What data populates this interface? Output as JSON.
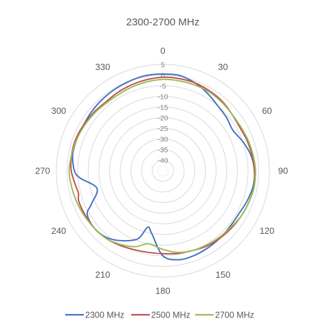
{
  "chart_data": {
    "type": "radar",
    "title": "2300-2700 MHz",
    "angle_labels": [
      "0",
      "30",
      "60",
      "90",
      "120",
      "150",
      "180",
      "210",
      "240",
      "270",
      "300",
      "330"
    ],
    "radial_ticks": [
      5,
      0,
      -5,
      -10,
      -15,
      -20,
      -25,
      -30,
      -35,
      -40
    ],
    "radial_tick_labels": [
      "5",
      "0",
      "-5",
      "-10",
      "-15",
      "-20",
      "-25",
      "-30",
      "-35",
      "-40"
    ],
    "rlim": [
      -45,
      5
    ],
    "grid": true,
    "legend_position": "bottom",
    "series": [
      {
        "name": "2300 MHz",
        "color": "#4472c4",
        "points": [
          [
            0,
            0.5
          ],
          [
            10,
            0.5
          ],
          [
            20,
            -1
          ],
          [
            30,
            -3
          ],
          [
            40,
            -5
          ],
          [
            50,
            -6
          ],
          [
            60,
            -7
          ],
          [
            70,
            -5
          ],
          [
            80,
            -3
          ],
          [
            90,
            -2
          ],
          [
            100,
            -2
          ],
          [
            110,
            -3
          ],
          [
            120,
            -4
          ],
          [
            130,
            -4
          ],
          [
            140,
            -3.5
          ],
          [
            150,
            -3
          ],
          [
            160,
            -2.5
          ],
          [
            170,
            -2.5
          ],
          [
            180,
            -5
          ],
          [
            190,
            -15
          ],
          [
            195,
            -17.5
          ],
          [
            200,
            -11
          ],
          [
            210,
            -7
          ],
          [
            220,
            -4
          ],
          [
            230,
            -3
          ],
          [
            240,
            -4
          ],
          [
            245,
            -8
          ],
          [
            255,
            -13
          ],
          [
            265,
            -6
          ],
          [
            270,
            -3.5
          ],
          [
            280,
            -2
          ],
          [
            290,
            -2
          ],
          [
            300,
            -2
          ],
          [
            310,
            -1.5
          ],
          [
            320,
            -1
          ],
          [
            330,
            -0.5
          ],
          [
            340,
            0
          ],
          [
            350,
            0.5
          ]
        ]
      },
      {
        "name": "2500 MHz",
        "color": "#c0504d",
        "points": [
          [
            0,
            -1
          ],
          [
            10,
            -1
          ],
          [
            20,
            -1
          ],
          [
            30,
            -1.5
          ],
          [
            40,
            -2
          ],
          [
            50,
            -3
          ],
          [
            60,
            -3.5
          ],
          [
            70,
            -3
          ],
          [
            80,
            -2.5
          ],
          [
            90,
            -2
          ],
          [
            100,
            -1.5
          ],
          [
            110,
            -2
          ],
          [
            120,
            -2.5
          ],
          [
            130,
            -3
          ],
          [
            140,
            -3.5
          ],
          [
            150,
            -4
          ],
          [
            160,
            -5
          ],
          [
            170,
            -5.5
          ],
          [
            180,
            -6
          ],
          [
            190,
            -6
          ],
          [
            200,
            -5.5
          ],
          [
            210,
            -4.5
          ],
          [
            220,
            -3.5
          ],
          [
            230,
            -3
          ],
          [
            240,
            -3
          ],
          [
            250,
            -3
          ],
          [
            255,
            -4
          ],
          [
            260,
            -3.5
          ],
          [
            270,
            -2
          ],
          [
            280,
            -1.5
          ],
          [
            290,
            -1.5
          ],
          [
            300,
            -2
          ],
          [
            310,
            -2.5
          ],
          [
            320,
            -3
          ],
          [
            330,
            -2.5
          ],
          [
            340,
            -2
          ],
          [
            350,
            -1.5
          ]
        ]
      },
      {
        "name": "2700 MHz",
        "color": "#9bbb59",
        "points": [
          [
            0,
            -2
          ],
          [
            10,
            -2
          ],
          [
            20,
            -2
          ],
          [
            30,
            -2
          ],
          [
            40,
            -2.5
          ],
          [
            50,
            -3
          ],
          [
            60,
            -3
          ],
          [
            70,
            -2.5
          ],
          [
            80,
            -2
          ],
          [
            90,
            -1.5
          ],
          [
            100,
            -1.5
          ],
          [
            110,
            -2
          ],
          [
            120,
            -2.5
          ],
          [
            130,
            -3.5
          ],
          [
            140,
            -4
          ],
          [
            150,
            -4.5
          ],
          [
            160,
            -5
          ],
          [
            170,
            -6
          ],
          [
            180,
            -8
          ],
          [
            190,
            -10
          ],
          [
            195,
            -9
          ],
          [
            200,
            -7
          ],
          [
            210,
            -5
          ],
          [
            220,
            -3.5
          ],
          [
            230,
            -3
          ],
          [
            240,
            -2.5
          ],
          [
            250,
            -2
          ],
          [
            260,
            -1.5
          ],
          [
            270,
            -1
          ],
          [
            280,
            -1.5
          ],
          [
            290,
            -2
          ],
          [
            300,
            -2.5
          ],
          [
            310,
            -3
          ],
          [
            320,
            -3.5
          ],
          [
            330,
            -3.5
          ],
          [
            340,
            -3
          ],
          [
            350,
            -2.5
          ]
        ]
      }
    ]
  }
}
